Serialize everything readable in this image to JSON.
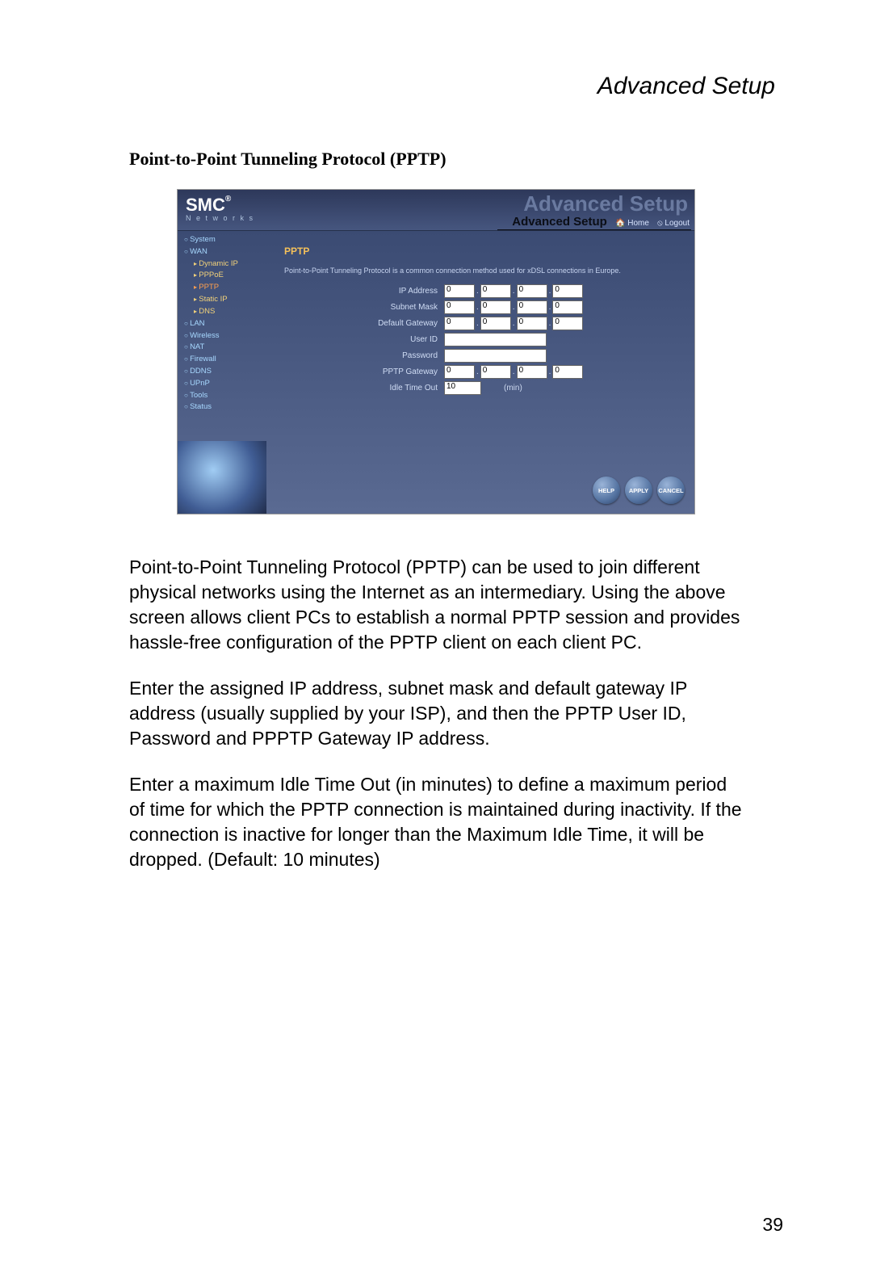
{
  "page": {
    "header": "Advanced Setup",
    "section_title": "Point-to-Point Tunneling Protocol (PPTP)",
    "number": "39"
  },
  "screenshot": {
    "logo_main": "SMC",
    "logo_reg": "®",
    "logo_sub": "N e t w o r k s",
    "ghost_title": "Advanced Setup",
    "title_bar": "Advanced Setup",
    "home_link": "Home",
    "logout_link": "Logout",
    "nav": {
      "system": "System",
      "wan": "WAN",
      "dynamic_ip": "Dynamic IP",
      "pppoe": "PPPoE",
      "pptp": "PPTP",
      "static_ip": "Static IP",
      "dns": "DNS",
      "lan": "LAN",
      "wireless": "Wireless",
      "nat": "NAT",
      "firewall": "Firewall",
      "ddns": "DDNS",
      "upnp": "UPnP",
      "tools": "Tools",
      "status": "Status"
    },
    "content": {
      "heading": "PPTP",
      "description": "Point-to-Point Tunneling Protocol is a common connection method used for xDSL connections in Europe.",
      "labels": {
        "ip_address": "IP Address",
        "subnet_mask": "Subnet Mask",
        "default_gateway": "Default Gateway",
        "user_id": "User ID",
        "password": "Password",
        "pptp_gateway": "PPTP Gateway",
        "idle_time_out": "Idle Time Out"
      },
      "ip_address": [
        "0",
        "0",
        "0",
        "0"
      ],
      "subnet_mask": [
        "0",
        "0",
        "0",
        "0"
      ],
      "default_gateway": [
        "0",
        "0",
        "0",
        "0"
      ],
      "pptp_gateway": [
        "0",
        "0",
        "0",
        "0"
      ],
      "idle_value": "10",
      "idle_unit": "(min)"
    },
    "buttons": {
      "help": "HELP",
      "apply": "APPLY",
      "cancel": "CANCEL"
    }
  },
  "paragraphs": {
    "p1": "Point-to-Point Tunneling Protocol (PPTP) can be used to join different physical networks using the Internet as an intermediary. Using the above screen allows client PCs to establish a normal PPTP session and provides hassle-free configuration of the PPTP client on each client PC.",
    "p2": "Enter the assigned IP address, subnet mask and default gateway IP address (usually supplied by your ISP), and then the PPTP User ID, Password and PPPTP Gateway IP address.",
    "p3": "Enter a maximum Idle Time Out (in minutes) to define a maximum period of time for which the PPTP connection is maintained during inactivity. If the connection is inactive for longer than the Maximum Idle Time, it will be dropped. (Default: 10 minutes)"
  }
}
